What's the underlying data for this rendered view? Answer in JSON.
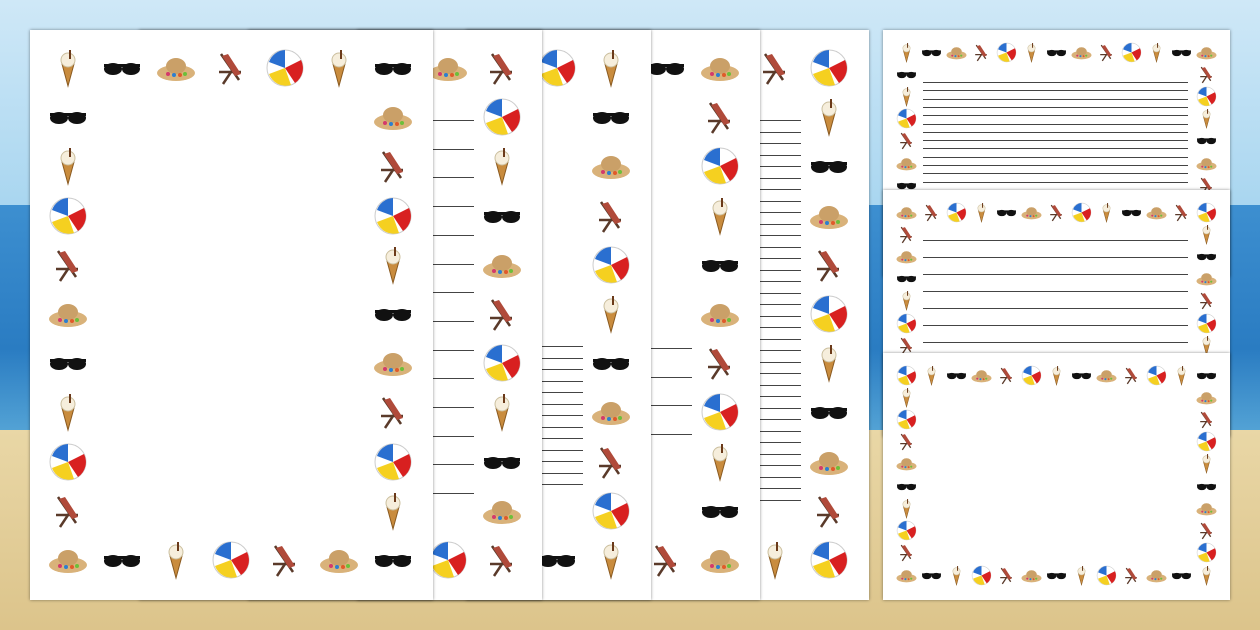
{
  "colors": {
    "sky": "#bfe1f4",
    "sea": "#2f82c6",
    "sand": "#e3cf9a",
    "page": "#ffffff",
    "writing_line": "#444444"
  },
  "icon_set": [
    "ice-cream",
    "sunglasses",
    "sun-hat",
    "deck-chair",
    "beach-ball"
  ],
  "portrait_pages": [
    {
      "lines": "none"
    },
    {
      "lines": "wide"
    },
    {
      "lines": "narrow-lower"
    },
    {
      "lines": "wide-lower"
    },
    {
      "lines": "narrow"
    }
  ],
  "landscape_pages": [
    {
      "lines": "narrow"
    },
    {
      "lines": "wide"
    },
    {
      "lines": "none"
    }
  ]
}
